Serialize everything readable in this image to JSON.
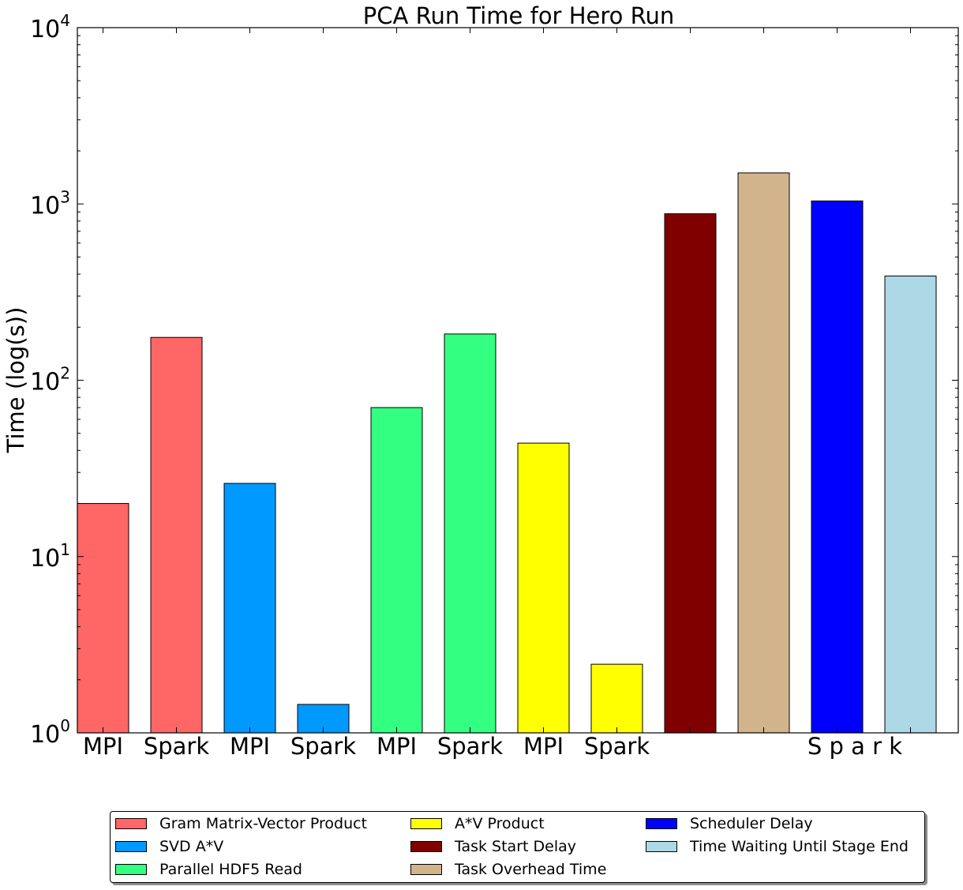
{
  "chart_data": {
    "type": "bar",
    "title": "PCA Run Time for Hero Run",
    "ylabel": "Time (log(s))",
    "xlabel": "",
    "yscale": "log",
    "ylim": [
      1,
      10000
    ],
    "y_ticks": [
      {
        "base": "10",
        "exp": "0"
      },
      {
        "base": "10",
        "exp": "1"
      },
      {
        "base": "10",
        "exp": "2"
      },
      {
        "base": "10",
        "exp": "3"
      },
      {
        "base": "10",
        "exp": "4"
      }
    ],
    "x_tick_labels": [
      "MPI",
      "Spark",
      "MPI",
      "Spark",
      "MPI",
      "Spark",
      "MPI",
      "Spark",
      "S p a r k"
    ],
    "grid": false,
    "legend_position": "bottom",
    "bars": [
      {
        "group": "MPI",
        "series": "Gram Matrix-Vector Product",
        "value": 20,
        "color": "#ff6666"
      },
      {
        "group": "Spark",
        "series": "Gram Matrix-Vector Product",
        "value": 175,
        "color": "#ff6666"
      },
      {
        "group": "MPI",
        "series": "SVD A*V",
        "value": 26,
        "color": "#0099ff"
      },
      {
        "group": "Spark",
        "series": "SVD A*V",
        "value": 1.45,
        "color": "#0099ff"
      },
      {
        "group": "MPI",
        "series": "Parallel HDF5 Read",
        "value": 70,
        "color": "#33ff80"
      },
      {
        "group": "Spark",
        "series": "Parallel HDF5 Read",
        "value": 183,
        "color": "#33ff80"
      },
      {
        "group": "MPI",
        "series": "A*V Product",
        "value": 44,
        "color": "#ffff00"
      },
      {
        "group": "Spark",
        "series": "A*V Product",
        "value": 2.45,
        "color": "#ffff00"
      },
      {
        "group": "Spark",
        "series": "Task Start Delay",
        "value": 880,
        "color": "#800000"
      },
      {
        "group": "Spark",
        "series": "Task Overhead Time",
        "value": 1500,
        "color": "#d2b48c"
      },
      {
        "group": "Spark",
        "series": "Scheduler Delay",
        "value": 1040,
        "color": "#0000ff"
      },
      {
        "group": "Spark",
        "series": "Time Waiting Until Stage End",
        "value": 390,
        "color": "#add8e6"
      }
    ],
    "legend": [
      {
        "label": "Gram Matrix-Vector Product",
        "color": "#ff6666"
      },
      {
        "label": "SVD A*V",
        "color": "#0099ff"
      },
      {
        "label": "Parallel HDF5 Read",
        "color": "#33ff80"
      },
      {
        "label": "A*V Product",
        "color": "#ffff00"
      },
      {
        "label": "Task Start Delay",
        "color": "#800000"
      },
      {
        "label": "Task Overhead Time",
        "color": "#d2b48c"
      },
      {
        "label": "Scheduler Delay",
        "color": "#0000ff"
      },
      {
        "label": "Time Waiting Until Stage End",
        "color": "#add8e6"
      }
    ]
  }
}
